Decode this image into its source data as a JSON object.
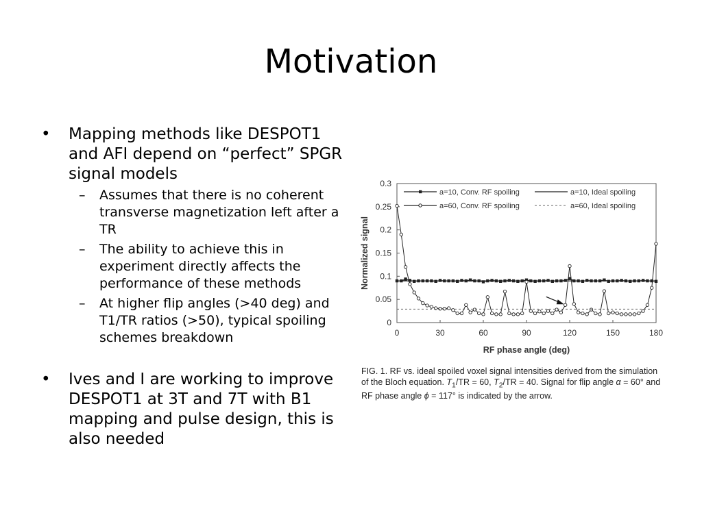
{
  "slide": {
    "title": "Motivation",
    "bullets": [
      {
        "text": "Mapping methods like DESPOT1 and AFI depend on “perfect” SPGR signal models",
        "sub": [
          "Assumes that there is no coherent transverse magnetization left after a TR",
          "The ability to achieve this in experiment directly affects the performance of these methods",
          "At higher flip angles (>40 deg) and T1/TR ratios (>50), typical spoiling schemes breakdown"
        ]
      },
      {
        "text": "Ives and I are working to improve DESPOT1 at 3T and 7T with B1 mapping and pulse design, this is also needed",
        "sub": []
      }
    ],
    "bullet_symbol": "•",
    "sub_symbol": "–",
    "caption": {
      "p1": "FIG. 1.  RF vs. ideal spoiled voxel signal intensities derived from the simulation of the Bloch equation. ",
      "t1": "T",
      "t1sub": "1",
      "p2": "/TR = 60, ",
      "t2": "T",
      "t2sub": "2",
      "p3": "/TR = 40. Signal for flip angle ",
      "alpha": "α",
      "p4": " = 60° and RF phase angle ",
      "phi": "ϕ",
      "p5": " = 117° is indicated by the arrow."
    }
  },
  "chart_data": {
    "type": "line",
    "xlabel": "RF phase angle (deg)",
    "ylabel": "Normalized signal",
    "xlim": [
      0,
      180
    ],
    "ylim": [
      0,
      0.3
    ],
    "xticks": [
      "0",
      "30",
      "60",
      "90",
      "120",
      "150",
      "180"
    ],
    "yticks": [
      "0",
      "0.05",
      "0.1",
      "0.15",
      "0.2",
      "0.25",
      "0.3"
    ],
    "legend": [
      "a=10, Conv. RF spoiling",
      "a=10, Ideal spoiling",
      "a=60, Conv. RF spoiling",
      "a=60, Ideal spoiling"
    ],
    "legend_position": "top",
    "series": [
      {
        "name": "a=10, Conv. RF spoiling",
        "style": "square-marker",
        "x": [
          0,
          3,
          6,
          9,
          12,
          15,
          18,
          21,
          24,
          27,
          30,
          33,
          36,
          39,
          42,
          45,
          48,
          51,
          54,
          57,
          60,
          63,
          66,
          69,
          72,
          75,
          78,
          81,
          84,
          87,
          90,
          93,
          96,
          99,
          102,
          105,
          108,
          111,
          114,
          117,
          120,
          123,
          126,
          129,
          132,
          135,
          138,
          141,
          144,
          147,
          150,
          153,
          156,
          159,
          162,
          165,
          168,
          171,
          174,
          177,
          180
        ],
        "y": [
          0.09,
          0.09,
          0.094,
          0.091,
          0.089,
          0.09,
          0.09,
          0.09,
          0.09,
          0.089,
          0.091,
          0.09,
          0.09,
          0.09,
          0.089,
          0.091,
          0.09,
          0.092,
          0.09,
          0.09,
          0.088,
          0.09,
          0.091,
          0.09,
          0.089,
          0.09,
          0.091,
          0.09,
          0.089,
          0.09,
          0.092,
          0.09,
          0.089,
          0.09,
          0.09,
          0.091,
          0.089,
          0.09,
          0.09,
          0.091,
          0.095,
          0.09,
          0.09,
          0.089,
          0.091,
          0.09,
          0.09,
          0.09,
          0.092,
          0.089,
          0.09,
          0.09,
          0.091,
          0.09,
          0.089,
          0.09,
          0.09,
          0.091,
          0.09,
          0.09,
          0.089
        ]
      },
      {
        "name": "a=10, Ideal spoiling",
        "style": "solid",
        "x": [
          0,
          180
        ],
        "y": [
          0.09,
          0.09
        ]
      },
      {
        "name": "a=60, Conv. RF spoiling",
        "style": "circle-marker",
        "x": [
          0,
          3,
          6,
          9,
          12,
          15,
          18,
          21,
          24,
          27,
          30,
          33,
          36,
          39,
          42,
          45,
          48,
          51,
          54,
          57,
          60,
          63,
          66,
          69,
          72,
          75,
          78,
          81,
          84,
          87,
          90,
          93,
          96,
          99,
          102,
          105,
          108,
          111,
          114,
          117,
          120,
          123,
          126,
          129,
          132,
          135,
          138,
          141,
          144,
          147,
          150,
          153,
          156,
          159,
          162,
          165,
          168,
          171,
          174,
          177,
          180
        ],
        "y": [
          0.252,
          0.19,
          0.12,
          0.083,
          0.065,
          0.052,
          0.042,
          0.037,
          0.034,
          0.031,
          0.03,
          0.03,
          0.031,
          0.027,
          0.02,
          0.02,
          0.038,
          0.022,
          0.028,
          0.02,
          0.018,
          0.055,
          0.02,
          0.018,
          0.018,
          0.067,
          0.02,
          0.018,
          0.018,
          0.02,
          0.088,
          0.025,
          0.02,
          0.024,
          0.02,
          0.025,
          0.02,
          0.028,
          0.022,
          0.038,
          0.122,
          0.04,
          0.022,
          0.02,
          0.018,
          0.028,
          0.02,
          0.018,
          0.068,
          0.02,
          0.022,
          0.02,
          0.018,
          0.018,
          0.018,
          0.018,
          0.02,
          0.025,
          0.038,
          0.075,
          0.17
        ]
      },
      {
        "name": "a=60, Ideal spoiling",
        "style": "dashed",
        "x": [
          0,
          180
        ],
        "y": [
          0.029,
          0.029
        ]
      }
    ],
    "annotation": {
      "type": "arrow",
      "x": 117,
      "y": 0.038
    }
  }
}
